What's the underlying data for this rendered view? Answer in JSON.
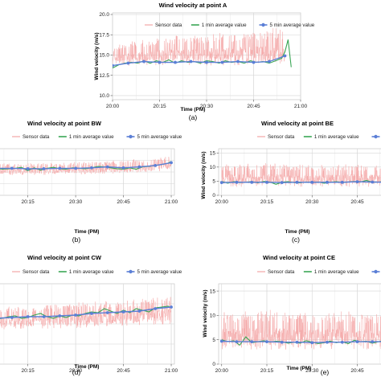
{
  "colors": {
    "sensor": "#f4a6a6",
    "one_min": "#3aa655",
    "five_min": "#5b7fd6",
    "panel_bg": "#ffffff",
    "grid": "#e4e4e4"
  },
  "legend_labels": [
    "Sensor data",
    "1 min average value",
    "5 min average value"
  ],
  "chart_data": [
    {
      "id": "a",
      "type": "line",
      "title": "Wind velocity at point A",
      "caption": "(a)",
      "xlabel": "Time (PM)",
      "ylabel": "Wind velocity (m/s)",
      "x_ticks": [
        "20:00",
        "20:15",
        "20:30",
        "20:45",
        "21:00"
      ],
      "y_ticks": [
        "10.0",
        "12.5",
        "15.0",
        "17.5",
        "20.0"
      ],
      "xlim": [
        0,
        60
      ],
      "ylim": [
        9.5,
        20.2
      ],
      "grid": true,
      "legend_position": "top",
      "sensor_band": [
        [
          0,
          13.6,
          16.2
        ],
        [
          10,
          13.7,
          17.0
        ],
        [
          20,
          13.8,
          17.4
        ],
        [
          30,
          13.7,
          17.6
        ],
        [
          40,
          13.6,
          18.0
        ],
        [
          50,
          13.6,
          18.3
        ],
        [
          55,
          13.6,
          18.4
        ]
      ],
      "series": [
        {
          "name": "1 min average value",
          "x": [
            0,
            2,
            4,
            6,
            8,
            10,
            12,
            14,
            16,
            18,
            20,
            22,
            24,
            26,
            28,
            30,
            32,
            34,
            36,
            38,
            40,
            42,
            44,
            46,
            48,
            50,
            52,
            54,
            55,
            56,
            57
          ],
          "values": [
            13.4,
            13.8,
            14.0,
            14.1,
            14.0,
            14.3,
            14.0,
            14.3,
            14.1,
            14.4,
            14.0,
            14.3,
            14.1,
            14.2,
            14.0,
            14.3,
            14.2,
            14.0,
            14.3,
            14.1,
            14.2,
            14.0,
            14.3,
            14.1,
            14.2,
            14.0,
            14.3,
            14.6,
            15.4,
            16.9,
            13.5
          ]
        },
        {
          "name": "5 min average value",
          "x": [
            0,
            5,
            10,
            15,
            20,
            25,
            30,
            35,
            40,
            45,
            50,
            55
          ],
          "values": [
            13.7,
            14.0,
            14.2,
            14.1,
            14.1,
            14.2,
            14.1,
            14.1,
            14.2,
            14.1,
            14.2,
            14.9
          ]
        }
      ]
    },
    {
      "id": "b",
      "type": "line",
      "title": "Wind velocity at point BW",
      "caption": "(b)",
      "xlabel": "Time (PM)",
      "ylabel": "",
      "x_ticks": [
        "20:15",
        "20:30",
        "20:45",
        "21:00"
      ],
      "y_ticks": [],
      "xlim": [
        5,
        61
      ],
      "ylim": [
        0,
        10
      ],
      "grid": true,
      "legend_position": "top",
      "sensor_band": [
        [
          5,
          4.3,
          6.9
        ],
        [
          20,
          4.4,
          7.0
        ],
        [
          35,
          4.5,
          7.2
        ],
        [
          50,
          4.8,
          7.8
        ],
        [
          60,
          5.4,
          8.4
        ]
      ],
      "series": [
        {
          "name": "1 min average value",
          "x": [
            5,
            7,
            9,
            11,
            13,
            15,
            17,
            19,
            21,
            23,
            25,
            27,
            29,
            31,
            33,
            35,
            37,
            39,
            41,
            43,
            45,
            47,
            49,
            51,
            53,
            55,
            57,
            59,
            60
          ],
          "values": [
            5.8,
            5.6,
            5.7,
            5.8,
            6.0,
            5.3,
            5.9,
            5.4,
            5.8,
            6.0,
            5.7,
            5.6,
            5.9,
            5.8,
            5.7,
            5.9,
            6.2,
            6.1,
            5.9,
            5.7,
            5.6,
            5.9,
            5.6,
            6.1,
            6.2,
            6.4,
            6.6,
            6.9,
            7.3
          ]
        },
        {
          "name": "5 min average value",
          "x": [
            5,
            10,
            15,
            20,
            25,
            30,
            35,
            40,
            45,
            50,
            55,
            60
          ],
          "values": [
            5.8,
            5.8,
            5.7,
            5.7,
            5.8,
            5.8,
            5.9,
            6.1,
            5.9,
            6.1,
            6.4,
            7.0
          ]
        }
      ]
    },
    {
      "id": "c",
      "type": "line",
      "title": "Wind velocity at point BE",
      "caption": "(c)",
      "xlabel": "Time (PM)",
      "ylabel": "Wind velocity (m/s)",
      "x_ticks": [
        "20:00",
        "20:15",
        "20:30",
        "20:45"
      ],
      "y_ticks": [
        "0",
        "5",
        "10",
        "15"
      ],
      "xlim": [
        -1,
        55
      ],
      "ylim": [
        0,
        16.5
      ],
      "grid": true,
      "legend_position": "top",
      "sensor_band": [
        [
          0,
          3.0,
          11.0
        ],
        [
          15,
          2.9,
          11.4
        ],
        [
          30,
          3.0,
          10.8
        ],
        [
          45,
          3.0,
          11.2
        ],
        [
          55,
          3.0,
          10.6
        ]
      ],
      "series": [
        {
          "name": "1 min average value",
          "x": [
            0,
            2,
            4,
            6,
            8,
            10,
            12,
            14,
            16,
            18,
            20,
            22,
            24,
            26,
            28,
            30,
            32,
            34,
            36,
            38,
            40,
            42,
            44,
            46,
            48,
            50,
            52,
            54
          ],
          "values": [
            4.9,
            4.3,
            4.8,
            4.5,
            4.6,
            4.8,
            4.4,
            4.9,
            4.7,
            3.9,
            4.6,
            4.8,
            4.5,
            4.4,
            4.7,
            4.6,
            4.7,
            4.3,
            4.6,
            4.8,
            4.5,
            4.7,
            4.9,
            4.7,
            5.3,
            4.6,
            4.7,
            4.8
          ]
        },
        {
          "name": "5 min average value",
          "x": [
            0,
            5,
            10,
            15,
            20,
            25,
            30,
            35,
            40,
            45,
            50,
            55
          ],
          "values": [
            4.5,
            4.6,
            4.6,
            4.6,
            4.5,
            4.6,
            4.6,
            4.6,
            4.6,
            4.8,
            4.7,
            4.6
          ]
        }
      ]
    },
    {
      "id": "d",
      "type": "line",
      "title": "Wind velocity at point CW",
      "caption": "(d)",
      "xlabel": "Time (PM)",
      "ylabel": "",
      "x_ticks": [
        "20:15",
        "20:30",
        "20:45",
        "21:00"
      ],
      "y_ticks": [],
      "xlim": [
        5,
        61
      ],
      "ylim": [
        0,
        10
      ],
      "grid": true,
      "legend_position": "top",
      "sensor_band": [
        [
          5,
          4.3,
          7.2
        ],
        [
          20,
          4.4,
          7.3
        ],
        [
          35,
          4.5,
          7.8
        ],
        [
          50,
          4.8,
          8.2
        ],
        [
          60,
          5.0,
          8.5
        ]
      ],
      "series": [
        {
          "name": "1 min average value",
          "x": [
            5,
            7,
            9,
            11,
            13,
            15,
            17,
            19,
            21,
            23,
            25,
            27,
            29,
            31,
            33,
            35,
            37,
            39,
            41,
            43,
            45,
            47,
            49,
            51,
            53,
            55,
            57,
            59,
            60
          ],
          "values": [
            5.6,
            5.7,
            5.9,
            6.0,
            5.7,
            5.8,
            6.1,
            6.3,
            5.9,
            5.7,
            6.0,
            5.8,
            6.1,
            6.0,
            6.3,
            6.5,
            6.4,
            6.9,
            6.6,
            6.3,
            6.7,
            6.4,
            6.9,
            6.7,
            6.5,
            7.0,
            7.1,
            7.2,
            7.0
          ]
        },
        {
          "name": "5 min average value",
          "x": [
            5,
            10,
            15,
            20,
            25,
            30,
            35,
            40,
            45,
            50,
            55,
            60
          ],
          "values": [
            5.7,
            5.8,
            5.9,
            5.9,
            6.0,
            6.1,
            6.3,
            6.4,
            6.5,
            6.6,
            6.9,
            7.1
          ]
        }
      ]
    },
    {
      "id": "e",
      "type": "line",
      "title": "Wind velocity at point CE",
      "caption": "(e)",
      "xlabel": "Time (PM)",
      "ylabel": "Wind velocity (m/s)",
      "x_ticks": [
        "20:00",
        "20:15",
        "20:30",
        "20:45"
      ],
      "y_ticks": [
        "0",
        "5",
        "10",
        "15"
      ],
      "xlim": [
        -1,
        55
      ],
      "ylim": [
        0,
        16.5
      ],
      "grid": true,
      "legend_position": "top",
      "sensor_band": [
        [
          0,
          3.0,
          10.8
        ],
        [
          15,
          2.9,
          11.2
        ],
        [
          30,
          3.0,
          10.6
        ],
        [
          45,
          3.0,
          11.0
        ],
        [
          55,
          3.0,
          10.4
        ]
      ],
      "series": [
        {
          "name": "1 min average value",
          "x": [
            0,
            2,
            4,
            6,
            8,
            10,
            12,
            14,
            16,
            18,
            20,
            22,
            24,
            26,
            28,
            30,
            32,
            34,
            36,
            38,
            40,
            42,
            44,
            46,
            48,
            50,
            52,
            54
          ],
          "values": [
            5.0,
            4.6,
            4.8,
            3.9,
            5.6,
            4.4,
            4.6,
            4.8,
            4.5,
            4.7,
            4.6,
            4.3,
            4.5,
            4.3,
            4.8,
            4.5,
            4.2,
            4.4,
            4.7,
            4.4,
            4.6,
            4.2,
            4.9,
            4.6,
            4.7,
            4.3,
            4.6,
            4.8
          ]
        },
        {
          "name": "5 min average value",
          "x": [
            0,
            5,
            10,
            15,
            20,
            25,
            30,
            35,
            40,
            45,
            50,
            55
          ],
          "values": [
            4.7,
            4.6,
            4.6,
            4.6,
            4.5,
            4.5,
            4.4,
            4.5,
            4.5,
            4.6,
            4.6,
            4.6
          ]
        }
      ]
    }
  ]
}
